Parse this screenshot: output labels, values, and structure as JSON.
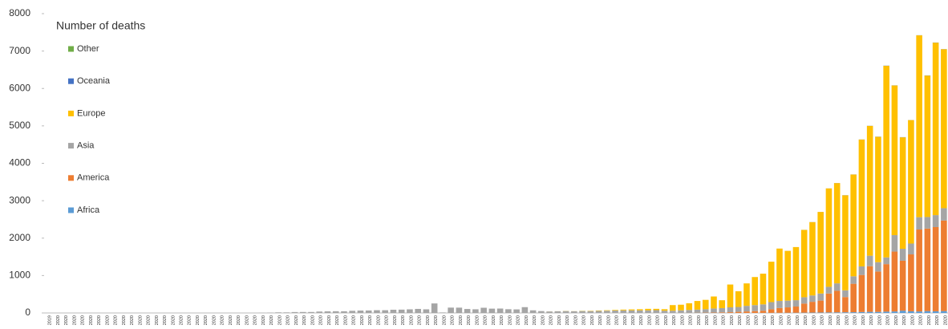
{
  "chart_data": {
    "type": "stacked-bar",
    "legend_title": "Number of deaths",
    "categories": [
      "2019",
      "2020",
      "2020",
      "2020",
      "2020",
      "2020",
      "2020",
      "2020",
      "2020",
      "2020",
      "2020",
      "2020",
      "2020",
      "2020",
      "2020",
      "2020",
      "2020",
      "2020",
      "2020",
      "2020",
      "2020",
      "2020",
      "2020",
      "2020",
      "2020",
      "2020",
      "2020",
      "2020",
      "2020",
      "2020",
      "2020",
      "2020",
      "2020",
      "2020",
      "2020",
      "2020",
      "2020",
      "2020",
      "2020",
      "2020",
      "2020",
      "2020",
      "2020",
      "2020",
      "2020",
      "2020",
      "2020",
      "2020",
      "2020",
      "2020",
      "2020",
      "2020",
      "2020",
      "2020",
      "2020",
      "2020",
      "2020",
      "2020",
      "2020",
      "2020",
      "2020",
      "2020",
      "2020",
      "2020",
      "2020",
      "2020",
      "2020",
      "2020",
      "2020",
      "2020",
      "2020",
      "2020",
      "2020",
      "2020",
      "2020",
      "2020",
      "2020",
      "2020",
      "2020",
      "2020",
      "2020",
      "2020",
      "2020",
      "2020",
      "2020",
      "2020",
      "2020",
      "2020",
      "2020",
      "2020",
      "2020",
      "2020",
      "2020",
      "2020",
      "2020",
      "2020",
      "2020",
      "2020",
      "2020",
      "2020",
      "2020",
      "2020",
      "2020",
      "2020",
      "2020",
      "2020",
      "2020",
      "2020",
      "2020",
      "2020"
    ],
    "series": [
      {
        "name": "Africa",
        "color": "#5b9bd5",
        "values": [
          0,
          0,
          0,
          0,
          0,
          0,
          0,
          0,
          0,
          0,
          0,
          0,
          0,
          0,
          0,
          0,
          0,
          0,
          0,
          0,
          0,
          0,
          0,
          0,
          0,
          0,
          0,
          0,
          0,
          0,
          0,
          0,
          0,
          0,
          0,
          0,
          0,
          0,
          0,
          0,
          0,
          0,
          0,
          0,
          0,
          0,
          0,
          0,
          0,
          0,
          0,
          0,
          0,
          0,
          0,
          0,
          0,
          0,
          0,
          0,
          0,
          0,
          0,
          0,
          0,
          0,
          0,
          0,
          0,
          0,
          0,
          0,
          0,
          0,
          0,
          0,
          0,
          0,
          0,
          0,
          0,
          0,
          0,
          0,
          0,
          0,
          1,
          2,
          3,
          4,
          5,
          6,
          8,
          10,
          12,
          14,
          16,
          18,
          20,
          25,
          30,
          28,
          35,
          40,
          60,
          45,
          40,
          50,
          45,
          50
        ]
      },
      {
        "name": "America",
        "color": "#ed7d31",
        "values": [
          0,
          0,
          0,
          0,
          0,
          0,
          0,
          0,
          0,
          0,
          0,
          0,
          0,
          0,
          0,
          0,
          0,
          0,
          0,
          0,
          0,
          0,
          0,
          0,
          0,
          0,
          0,
          0,
          0,
          0,
          0,
          0,
          0,
          0,
          0,
          0,
          0,
          0,
          0,
          0,
          0,
          0,
          0,
          0,
          0,
          0,
          0,
          0,
          0,
          0,
          0,
          0,
          0,
          0,
          0,
          0,
          0,
          0,
          0,
          0,
          0,
          0,
          0,
          0,
          0,
          0,
          0,
          0,
          0,
          0,
          0,
          0,
          0,
          0,
          0,
          0,
          1,
          2,
          3,
          5,
          8,
          10,
          15,
          20,
          30,
          40,
          49,
          58,
          97,
          127,
          144,
          165,
          242,
          288,
          318,
          505,
          575,
          407,
          760,
          990,
          1220,
          1080,
          1270,
          1600,
          1335,
          1520,
          2190,
          2205,
          2250,
          2420
        ]
      },
      {
        "name": "Asia",
        "color": "#a5a5a5",
        "values": [
          0,
          0,
          0,
          0,
          0,
          0,
          0,
          0,
          0,
          0,
          0,
          0,
          0,
          0,
          0,
          0,
          0,
          0,
          0,
          0,
          0,
          0,
          0,
          0,
          0,
          0,
          3,
          8,
          16,
          15,
          24,
          26,
          26,
          38,
          43,
          46,
          45,
          57,
          64,
          66,
          73,
          73,
          86,
          89,
          97,
          108,
          97,
          254,
          13,
          143,
          142,
          106,
          98,
          139,
          115,
          118,
          100,
          95,
          155,
          70,
          50,
          40,
          45,
          50,
          45,
          50,
          50,
          55,
          60,
          65,
          70,
          70,
          70,
          70,
          75,
          60,
          59,
          68,
          77,
          85,
          92,
          110,
          115,
          130,
          130,
          150,
          160,
          170,
          190,
          190,
          180,
          170,
          170,
          170,
          190,
          180,
          200,
          180,
          200,
          230,
          280,
          250,
          180,
          440,
          320,
          290,
          330,
          310,
          320,
          330
        ]
      },
      {
        "name": "Europe",
        "color": "#ffc000",
        "values": [
          0,
          0,
          0,
          0,
          0,
          0,
          0,
          0,
          0,
          0,
          0,
          0,
          0,
          0,
          0,
          0,
          0,
          0,
          0,
          0,
          0,
          0,
          0,
          0,
          0,
          0,
          0,
          0,
          0,
          0,
          0,
          0,
          0,
          0,
          0,
          0,
          0,
          0,
          0,
          0,
          0,
          0,
          0,
          0,
          0,
          0,
          0,
          0,
          0,
          0,
          0,
          0,
          0,
          0,
          0,
          0,
          0,
          0,
          0,
          0,
          0,
          1,
          1,
          3,
          2,
          5,
          8,
          10,
          12,
          15,
          20,
          25,
          30,
          40,
          35,
          40,
          150,
          150,
          180,
          230,
          250,
          320,
          210,
          610,
          420,
          600,
          750,
          820,
          1080,
          1400,
          1330,
          1420,
          1800,
          1960,
          2180,
          2630,
          2680,
          2540,
          2720,
          3390,
          3470,
          3350,
          5120,
          4000,
          2980,
          3300,
          4860,
          3780,
          4610,
          4250
        ]
      },
      {
        "name": "Oceania",
        "color": "#4472c4",
        "values": [
          0,
          0,
          0,
          0,
          0,
          0,
          0,
          0,
          0,
          0,
          0,
          0,
          0,
          0,
          0,
          0,
          0,
          0,
          0,
          0,
          0,
          0,
          0,
          0,
          0,
          0,
          0,
          0,
          0,
          0,
          0,
          0,
          0,
          0,
          0,
          0,
          0,
          0,
          0,
          0,
          0,
          0,
          0,
          0,
          0,
          0,
          0,
          0,
          0,
          0,
          0,
          0,
          0,
          0,
          0,
          0,
          0,
          0,
          0,
          0,
          0,
          0,
          0,
          0,
          0,
          0,
          0,
          0,
          0,
          0,
          0,
          0,
          0,
          0,
          0,
          0,
          0,
          0,
          0,
          0,
          0,
          0,
          0,
          0,
          0,
          0,
          0,
          0,
          0,
          0,
          1,
          0,
          1,
          2,
          1,
          1,
          2,
          3,
          2,
          2,
          3,
          4,
          5,
          3,
          4,
          2,
          3,
          5,
          4,
          3
        ]
      },
      {
        "name": "Other",
        "color": "#70ad47",
        "values": [
          0,
          0,
          0,
          0,
          0,
          0,
          0,
          0,
          0,
          0,
          0,
          0,
          0,
          0,
          0,
          0,
          0,
          0,
          0,
          0,
          0,
          0,
          0,
          0,
          0,
          0,
          0,
          0,
          0,
          0,
          0,
          0,
          0,
          0,
          0,
          0,
          0,
          0,
          0,
          0,
          0,
          0,
          0,
          0,
          0,
          0,
          0,
          0,
          0,
          0,
          0,
          0,
          0,
          0,
          0,
          0,
          0,
          0,
          0,
          0,
          0,
          0,
          0,
          1,
          0,
          2,
          0,
          1,
          0,
          0,
          0,
          0,
          0,
          0,
          0,
          0,
          0,
          0,
          0,
          0,
          0,
          0,
          0,
          0,
          0,
          0,
          0,
          0,
          0,
          0,
          0,
          0,
          0,
          0,
          0,
          0,
          0,
          0,
          0,
          0,
          0,
          0,
          0,
          0,
          0,
          0,
          0,
          0,
          0,
          0
        ]
      }
    ],
    "ylim": [
      0,
      8000
    ],
    "yticks": [
      0,
      1000,
      2000,
      3000,
      4000,
      5000,
      6000,
      7000,
      8000
    ],
    "grid": false,
    "legend_position": "upper left"
  }
}
